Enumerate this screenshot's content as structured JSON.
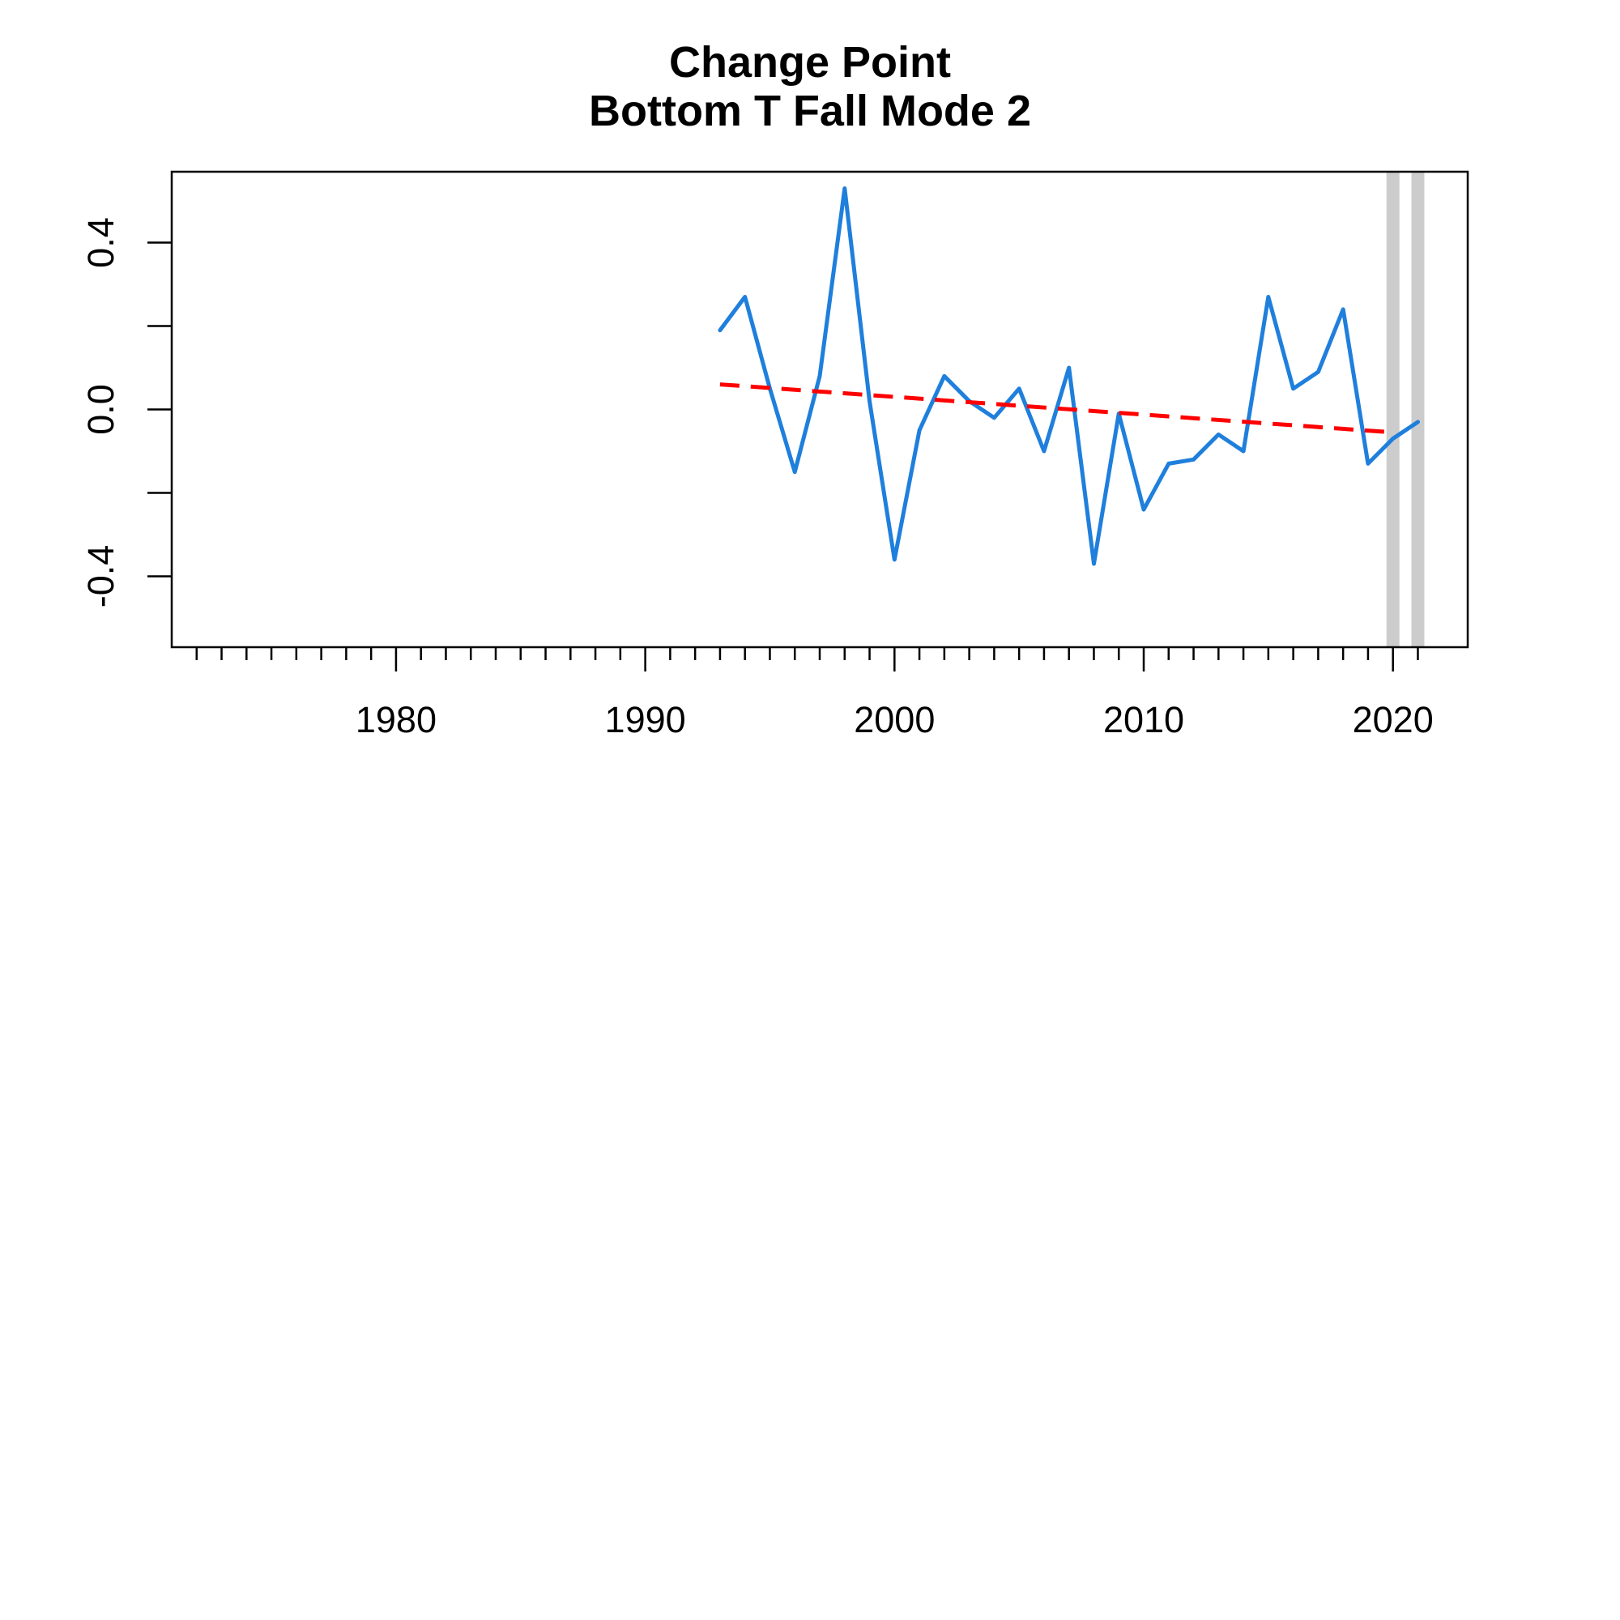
{
  "chart_data": {
    "type": "line",
    "title": "Change Point",
    "subtitle": "Bottom T Fall Mode 2",
    "xlabel": "",
    "ylabel": "",
    "xlim": [
      1971,
      2023
    ],
    "ylim": [
      -0.57,
      0.57
    ],
    "x_major_ticks": [
      1980,
      1990,
      2000,
      2010,
      2020
    ],
    "x_minor_ticks_every": 1,
    "y_ticks": [
      -0.4,
      -0.2,
      0.0,
      0.2,
      0.4
    ],
    "y_tick_labels": [
      {
        "value": -0.4,
        "label": "-0.4"
      },
      {
        "value": 0.0,
        "label": "0.0"
      },
      {
        "value": 0.4,
        "label": "0.4"
      }
    ],
    "grid": false,
    "series": [
      {
        "style": "solid",
        "color": "#1f7fdc",
        "x": [
          1993,
          1994,
          1995,
          1996,
          1997,
          1998,
          1999,
          2000,
          2001,
          2002,
          2003,
          2004,
          2005,
          2006,
          2007,
          2008,
          2009,
          2010,
          2011,
          2012,
          2013,
          2014,
          2015,
          2016,
          2017,
          2018,
          2019,
          2020,
          2021
        ],
        "y": [
          0.19,
          0.27,
          0.05,
          -0.15,
          0.08,
          0.53,
          0.02,
          -0.36,
          -0.05,
          0.08,
          0.02,
          -0.02,
          0.05,
          -0.1,
          0.1,
          -0.37,
          -0.01,
          -0.24,
          -0.13,
          -0.12,
          -0.06,
          -0.1,
          0.27,
          0.05,
          0.09,
          0.24,
          -0.13,
          -0.07,
          -0.03
        ]
      },
      {
        "style": "dashed",
        "color": "#ff0000",
        "x": [
          1993,
          2020
        ],
        "y": [
          0.06,
          -0.055
        ]
      }
    ],
    "change_points": {
      "color": "#cccccc",
      "x": [
        2020,
        2021
      ]
    }
  }
}
